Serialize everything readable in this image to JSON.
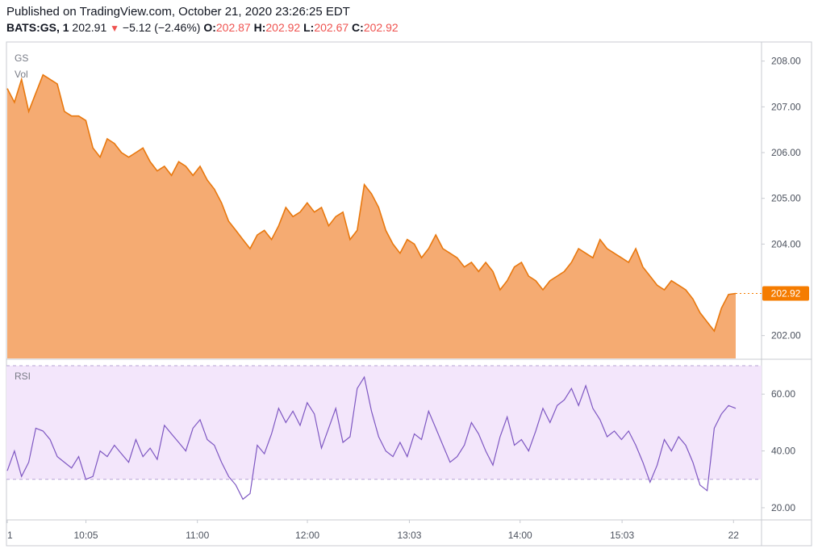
{
  "header": {
    "published": "Published on TradingView.com, October 21, 2020 23:26:25 EDT",
    "symbol": "BATS:GS, 1",
    "last": "202.91",
    "change": "−5.12 (−2.46%)",
    "o_label": "O:",
    "o_value": "202.87",
    "h_label": "H:",
    "h_value": "202.92",
    "l_label": "L:",
    "l_value": "202.67",
    "c_label": "C:",
    "c_value": "202.92"
  },
  "colors": {
    "area_fill": "#f5ab72",
    "area_line": "#e8780e",
    "rsi_line": "#7e57c2",
    "rsi_band": "#f3e6fb",
    "price_badge": "#f57c00",
    "down": "#ef5350"
  },
  "chart_data": [
    {
      "type": "area",
      "pane_labels": [
        "GS",
        "Vol"
      ],
      "x_ticks": [
        "1",
        "10:05",
        "11:00",
        "12:00",
        "13:03",
        "14:00",
        "15:03",
        "22"
      ],
      "y_ticks": [
        "208.00",
        "207.00",
        "206.00",
        "205.00",
        "204.00",
        "202.00"
      ],
      "ylim": [
        201.5,
        208.4
      ],
      "last_price_label": "202.92",
      "series": [
        {
          "values": [
            207.4,
            207.1,
            207.6,
            206.9,
            207.3,
            207.7,
            207.6,
            207.5,
            206.9,
            206.8,
            206.8,
            206.7,
            206.1,
            205.9,
            206.3,
            206.2,
            206.0,
            205.9,
            206.0,
            206.1,
            205.8,
            205.6,
            205.7,
            205.5,
            205.8,
            205.7,
            205.5,
            205.7,
            205.4,
            205.2,
            204.9,
            204.5,
            204.3,
            204.1,
            203.9,
            204.2,
            204.3,
            204.1,
            204.4,
            204.8,
            204.6,
            204.7,
            204.9,
            204.7,
            204.8,
            204.4,
            204.6,
            204.7,
            204.1,
            204.3,
            205.3,
            205.1,
            204.8,
            204.3,
            204.0,
            203.8,
            204.1,
            204.0,
            203.7,
            203.9,
            204.2,
            203.9,
            203.8,
            203.7,
            203.5,
            203.6,
            203.4,
            203.6,
            203.4,
            203.0,
            203.2,
            203.5,
            203.6,
            203.3,
            203.2,
            203.0,
            203.2,
            203.3,
            203.4,
            203.6,
            203.9,
            203.8,
            203.7,
            204.1,
            203.9,
            203.8,
            203.7,
            203.6,
            203.9,
            203.5,
            203.3,
            203.1,
            203.0,
            203.2,
            203.1,
            203.0,
            202.8,
            202.5,
            202.3,
            202.1,
            202.6,
            202.9,
            202.92
          ]
        }
      ]
    },
    {
      "type": "line",
      "pane_label": "RSI",
      "y_ticks": [
        "60.00",
        "40.00",
        "20.00"
      ],
      "ylim": [
        16,
        72
      ],
      "band": [
        30,
        70
      ],
      "series": [
        {
          "values": [
            33,
            40,
            31,
            36,
            48,
            47,
            44,
            38,
            36,
            34,
            38,
            30,
            31,
            40,
            38,
            42,
            39,
            36,
            44,
            38,
            41,
            37,
            49,
            46,
            43,
            40,
            48,
            51,
            44,
            42,
            36,
            31,
            28,
            23,
            25,
            42,
            39,
            46,
            55,
            50,
            54,
            49,
            57,
            53,
            41,
            48,
            55,
            43,
            45,
            62,
            66,
            54,
            45,
            40,
            38,
            43,
            38,
            46,
            44,
            54,
            48,
            42,
            36,
            38,
            42,
            50,
            46,
            40,
            35,
            45,
            52,
            42,
            44,
            40,
            47,
            55,
            50,
            56,
            58,
            62,
            56,
            63,
            55,
            51,
            45,
            47,
            44,
            47,
            42,
            36,
            29,
            35,
            44,
            40,
            45,
            42,
            36,
            28,
            26,
            48,
            53,
            56,
            55
          ]
        }
      ]
    }
  ]
}
